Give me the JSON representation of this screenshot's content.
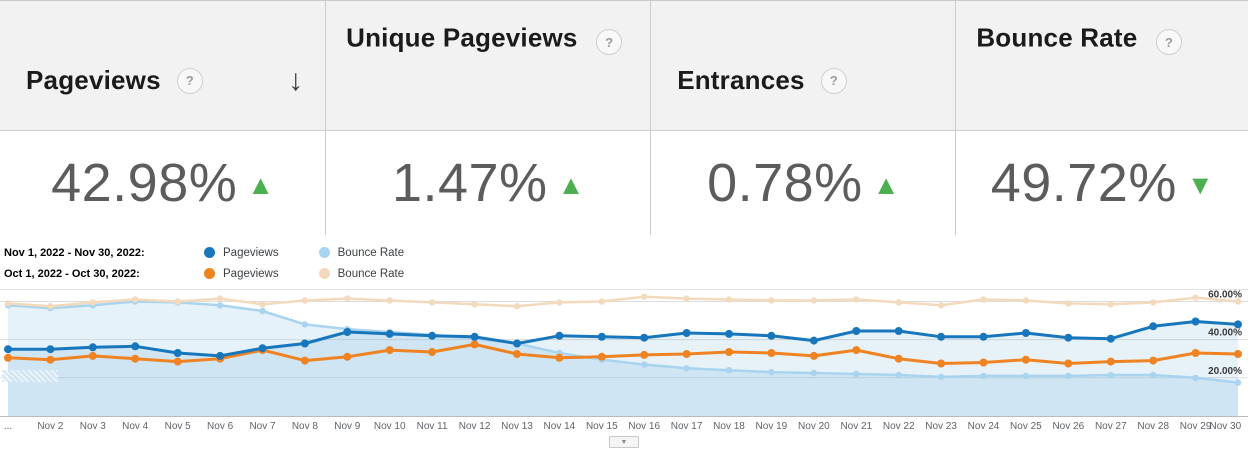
{
  "icons": {
    "help": "?",
    "sort_down": "↓",
    "chevron_down": "▼"
  },
  "metrics": [
    {
      "label": "Pageviews",
      "value": "42.98%",
      "direction": "up",
      "arrow_icon": "▲",
      "arrow_color": "#4caf50"
    },
    {
      "label": "Unique Pageviews",
      "value": "1.47%",
      "direction": "up",
      "arrow_icon": "▲",
      "arrow_color": "#4caf50"
    },
    {
      "label": "Entrances",
      "value": "0.78%",
      "direction": "up",
      "arrow_icon": "▲",
      "arrow_color": "#4caf50"
    },
    {
      "label": "Bounce Rate",
      "value": "49.72%",
      "direction": "down",
      "arrow_icon": "▼",
      "arrow_color": "#4caf50"
    }
  ],
  "legend": [
    {
      "period": "Nov 1, 2022 - Nov 30, 2022:",
      "entries": [
        {
          "label": "Pageviews",
          "color": "#1877bc"
        },
        {
          "label": "Bounce Rate",
          "color": "#a9d4ef"
        }
      ]
    },
    {
      "period": "Oct 1, 2022 - Oct 30, 2022:",
      "entries": [
        {
          "label": "Pageviews",
          "color": "#ef8322"
        },
        {
          "label": "Bounce Rate",
          "color": "#f3dabd"
        }
      ]
    }
  ],
  "chart_data": {
    "type": "line",
    "x": [
      "...",
      "Nov 2",
      "Nov 3",
      "Nov 4",
      "Nov 5",
      "Nov 6",
      "Nov 7",
      "Nov 8",
      "Nov 9",
      "Nov 10",
      "Nov 11",
      "Nov 12",
      "Nov 13",
      "Nov 14",
      "Nov 15",
      "Nov 16",
      "Nov 17",
      "Nov 18",
      "Nov 19",
      "Nov 20",
      "Nov 21",
      "Nov 22",
      "Nov 23",
      "Nov 24",
      "Nov 25",
      "Nov 26",
      "Nov 27",
      "Nov 28",
      "Nov 29",
      "Nov 30"
    ],
    "series": [
      {
        "name": "Nov 1, 2022 - Nov 30, 2022 Bounce Rate",
        "color": "#a9d4ef",
        "width": 2.5,
        "dot": 3.2,
        "fill": "rgba(169,212,239,0.30)",
        "values": [
          58,
          56.5,
          58,
          60,
          59.5,
          58,
          55,
          48,
          45.5,
          44,
          42.5,
          40.5,
          38,
          33,
          29.5,
          27,
          25,
          24,
          23,
          22.5,
          22,
          21.5,
          20.5,
          21,
          21,
          21,
          21.5,
          21.5,
          20,
          17.5
        ]
      },
      {
        "name": "Oct 1, 2022 - Oct 30, 2022 Bounce Rate",
        "color": "#f3dabd",
        "width": 2.5,
        "dot": 3.2,
        "values": [
          59,
          57.5,
          59.5,
          61,
          60,
          61.5,
          58.5,
          60.5,
          61.5,
          60.5,
          59.5,
          58.5,
          57.5,
          59.5,
          60,
          62.5,
          61.5,
          61,
          60.5,
          60.5,
          61,
          59.5,
          58,
          61,
          60.5,
          59,
          58.5,
          59.5,
          62,
          60
        ]
      },
      {
        "name": "Oct 1, 2022 - Oct 30, 2022 Pageviews",
        "color": "#ef8322",
        "width": 3,
        "dot": 4,
        "values": [
          30.5,
          29.5,
          31.5,
          30,
          28.5,
          30,
          34.5,
          29,
          31,
          34.5,
          33.5,
          37.5,
          32.5,
          30.5,
          31,
          32,
          32.5,
          33.5,
          33,
          31.5,
          34.5,
          30,
          27.5,
          28,
          29.5,
          27.5,
          28.5,
          29,
          33,
          32.5
        ]
      },
      {
        "name": "Nov 1, 2022 - Nov 30, 2022 Pageviews",
        "color": "#1877bc",
        "width": 3,
        "dot": 4,
        "fill": "rgba(24,119,188,0.10)",
        "values": [
          35,
          35,
          36,
          36.5,
          33,
          31.5,
          35.5,
          38,
          44,
          43,
          42,
          41.5,
          38,
          42,
          41.5,
          41,
          43.5,
          43,
          42,
          39.5,
          44.5,
          44.5,
          41.5,
          41.5,
          43.5,
          41,
          40.5,
          47,
          49.5,
          48
        ]
      }
    ],
    "ylim": [
      0,
      66
    ],
    "yticks": [
      {
        "value": 20,
        "label": "20.00%"
      },
      {
        "value": 40,
        "label": "40.00%"
      },
      {
        "value": 60,
        "label": "60.00%"
      }
    ],
    "grid": true,
    "legend_position": "top"
  }
}
